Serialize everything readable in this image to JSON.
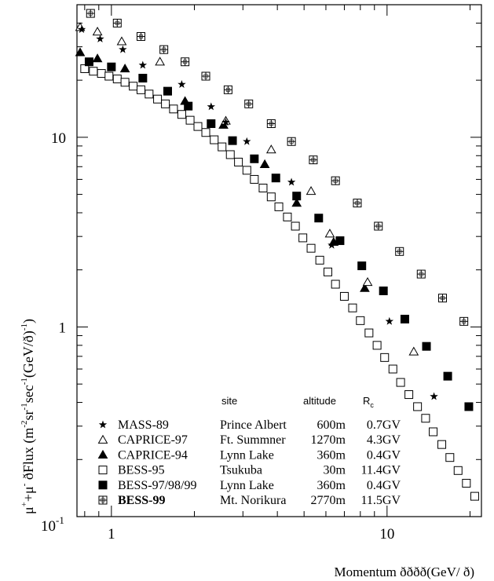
{
  "chart_data": {
    "type": "scatter",
    "xlabel": "Momentum ðððð(GeV/ ð)",
    "ylabel": "μ⁺+μ⁻ ðFlux (m⁻²sr⁻¹sec⁻¹(GeV/ð)⁻¹)",
    "ylabel_parts": {
      "mu": "μ",
      "plus": "+",
      "plus_mu": "+μ",
      "minus": "-",
      "flux": " ðFlux (m",
      "m2": "-2",
      "sr": "sr",
      "m1a": "-1",
      "sec": "sec",
      "m1b": "-1",
      "gev": "(GeV/ð)",
      "m1c": "-1",
      "close": ")"
    },
    "x_scale": "log",
    "y_scale": "log",
    "xlim": [
      0.75,
      22
    ],
    "ylim": [
      0.1,
      50
    ],
    "x_tick_labels": [
      {
        "value": 1,
        "label": "1"
      },
      {
        "value": 10,
        "label": "10"
      }
    ],
    "y_tick_labels": [
      {
        "value": 10,
        "label": "10"
      },
      {
        "value": 1,
        "label": "1"
      },
      {
        "value": 0.1,
        "base": "10",
        "exp": "-1"
      }
    ],
    "legend": {
      "placement": "bottom-left",
      "headers": {
        "site": "site",
        "altitude": "altitude",
        "rc": "R",
        "rc_sub": "c"
      }
    },
    "series": [
      {
        "name": "MASS-89",
        "marker": "star",
        "site": "Prince Albert",
        "altitude": "600m",
        "rc": "0.7GV",
        "x": [
          0.78,
          0.91,
          1.1,
          1.3,
          1.8,
          2.3,
          2.6,
          3.1,
          4.5,
          6.3,
          10.2,
          14.8
        ],
        "y": [
          37,
          33,
          29,
          24,
          19,
          14.5,
          12,
          9.5,
          5.8,
          2.7,
          1.07,
          0.43
        ]
      },
      {
        "name": "CAPRICE-97",
        "marker": "triangle-open",
        "site": "Ft. Summner",
        "altitude": "1270m",
        "rc": "4.3GV",
        "x": [
          0.77,
          0.89,
          1.09,
          1.5,
          2.6,
          3.8,
          5.3,
          6.2,
          8.5,
          12.5
        ],
        "y": [
          38,
          36,
          32,
          25,
          12.2,
          8.6,
          5.2,
          3.1,
          1.72,
          0.74
        ]
      },
      {
        "name": "CAPRICE-94",
        "marker": "triangle-filled",
        "site": "Lynn Lake",
        "altitude": "360m",
        "rc": "0.4GV",
        "x": [
          0.77,
          0.89,
          1.12,
          1.85,
          2.55,
          3.6,
          4.7,
          6.4,
          8.3
        ],
        "y": [
          28,
          26,
          23,
          15.5,
          11.6,
          7.2,
          4.5,
          2.8,
          1.6
        ]
      },
      {
        "name": "BESS-95",
        "marker": "square-open",
        "site": "Tsukuba",
        "altitude": "30m",
        "rc": "11.4GV",
        "x": [
          0.8,
          0.86,
          0.92,
          0.98,
          1.05,
          1.12,
          1.2,
          1.28,
          1.37,
          1.47,
          1.57,
          1.68,
          1.8,
          1.93,
          2.06,
          2.2,
          2.36,
          2.52,
          2.7,
          2.89,
          3.1,
          3.3,
          3.55,
          3.8,
          4.05,
          4.35,
          4.65,
          4.95,
          5.3,
          5.7,
          6.1,
          6.5,
          7.0,
          7.5,
          8.0,
          8.6,
          9.2,
          9.8,
          10.5,
          11.2,
          12.0,
          12.9,
          13.8,
          14.7,
          15.8,
          16.9,
          18.1,
          19.4,
          20.8
        ],
        "y": [
          23,
          22.3,
          21.7,
          21,
          20.3,
          19.5,
          18.6,
          17.8,
          16.9,
          15.9,
          15,
          14.1,
          13.2,
          12.3,
          11.4,
          10.6,
          9.7,
          8.9,
          8.1,
          7.4,
          6.7,
          6.0,
          5.4,
          4.85,
          4.3,
          3.8,
          3.4,
          2.95,
          2.6,
          2.25,
          1.95,
          1.68,
          1.45,
          1.26,
          1.08,
          0.93,
          0.8,
          0.69,
          0.6,
          0.51,
          0.44,
          0.38,
          0.33,
          0.28,
          0.24,
          0.205,
          0.175,
          0.15,
          0.128
        ]
      },
      {
        "name": "BESS-97/98/99",
        "marker": "square-filled",
        "site": "Lynn Lake",
        "altitude": "360m",
        "rc": "0.4GV",
        "x": [
          0.83,
          1.0,
          1.3,
          1.6,
          1.9,
          2.3,
          2.75,
          3.3,
          3.95,
          4.7,
          5.65,
          6.75,
          8.1,
          9.7,
          11.6,
          13.9,
          16.6,
          19.8
        ],
        "y": [
          25,
          23.5,
          20.5,
          17.5,
          14.6,
          11.8,
          9.6,
          7.7,
          6.1,
          4.9,
          3.75,
          2.85,
          2.1,
          1.55,
          1.1,
          0.79,
          0.55,
          0.38
        ]
      },
      {
        "name": "BESS-99",
        "marker": "square-plus",
        "site": "Mt. Norikura",
        "altitude": "2770m",
        "rc": "11.5GV",
        "x": [
          0.84,
          1.05,
          1.28,
          1.55,
          1.85,
          2.2,
          2.65,
          3.15,
          3.8,
          4.5,
          5.4,
          6.5,
          7.8,
          9.3,
          11.1,
          13.3,
          15.9,
          19.0
        ],
        "y": [
          45,
          40,
          34,
          29,
          25,
          21,
          17.8,
          15,
          11.8,
          9.5,
          7.6,
          5.9,
          4.5,
          3.4,
          2.5,
          1.9,
          1.42,
          1.07
        ]
      }
    ]
  }
}
